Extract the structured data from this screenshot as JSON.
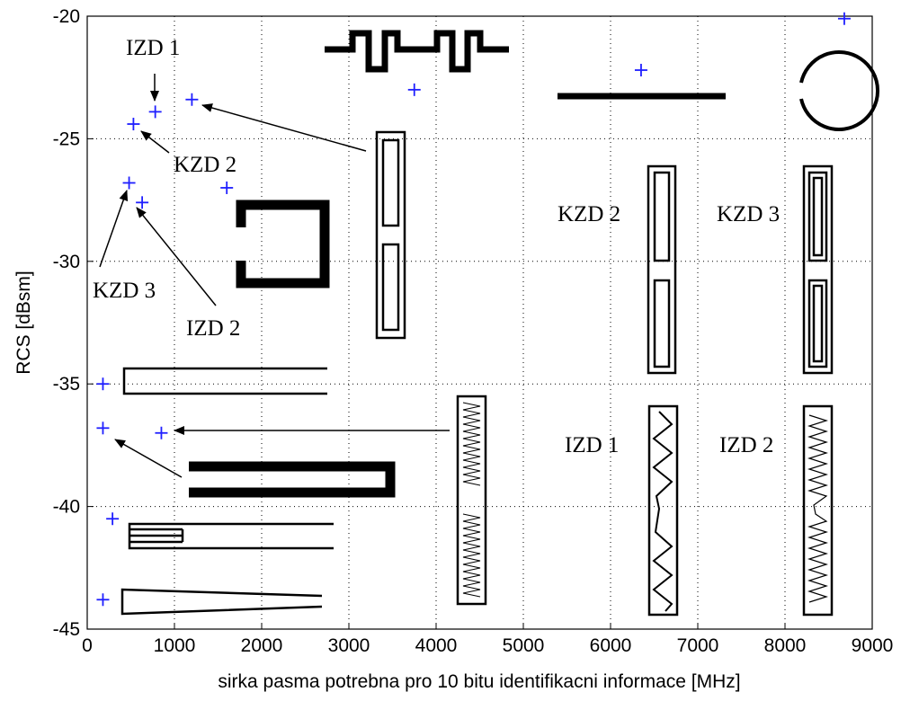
{
  "chart_data": {
    "type": "scatter",
    "xlabel": "sirka pasma potrebna pro 10 bitu identifikacni informace [MHz]",
    "ylabel": "RCS [dBsm]",
    "xlim": [
      0,
      9000
    ],
    "ylim": [
      -45,
      -20
    ],
    "xticks": [
      "0",
      "1000",
      "2000",
      "3000",
      "4000",
      "5000",
      "6000",
      "7000",
      "8000",
      "9000"
    ],
    "yticks": [
      "-20",
      "-25",
      "-30",
      "-35",
      "-40",
      "-45"
    ],
    "grid": true,
    "marker": "+",
    "marker_color": "#1f1fff",
    "points": [
      {
        "x": 780,
        "y": -23.9
      },
      {
        "x": 530,
        "y": -24.4
      },
      {
        "x": 1200,
        "y": -23.4
      },
      {
        "x": 3750,
        "y": -23.0
      },
      {
        "x": 6350,
        "y": -22.2
      },
      {
        "x": 8680,
        "y": -20.1
      },
      {
        "x": 1600,
        "y": -27.0
      },
      {
        "x": 480,
        "y": -26.8
      },
      {
        "x": 630,
        "y": -27.6
      },
      {
        "x": 180,
        "y": -35.0
      },
      {
        "x": 180,
        "y": -36.8
      },
      {
        "x": 850,
        "y": -37.0
      },
      {
        "x": 290,
        "y": -40.5
      },
      {
        "x": 180,
        "y": -43.8
      }
    ],
    "annotations": {
      "izd1_top": "IZD 1",
      "kzd2_left": "KZD 2",
      "kzd3_left": "KZD 3",
      "izd2_left": "IZD 2",
      "kzd2_right": "KZD 2",
      "kzd3_right": "KZD 3",
      "izd1_right": "IZD 1",
      "izd2_right": "IZD 2"
    }
  }
}
